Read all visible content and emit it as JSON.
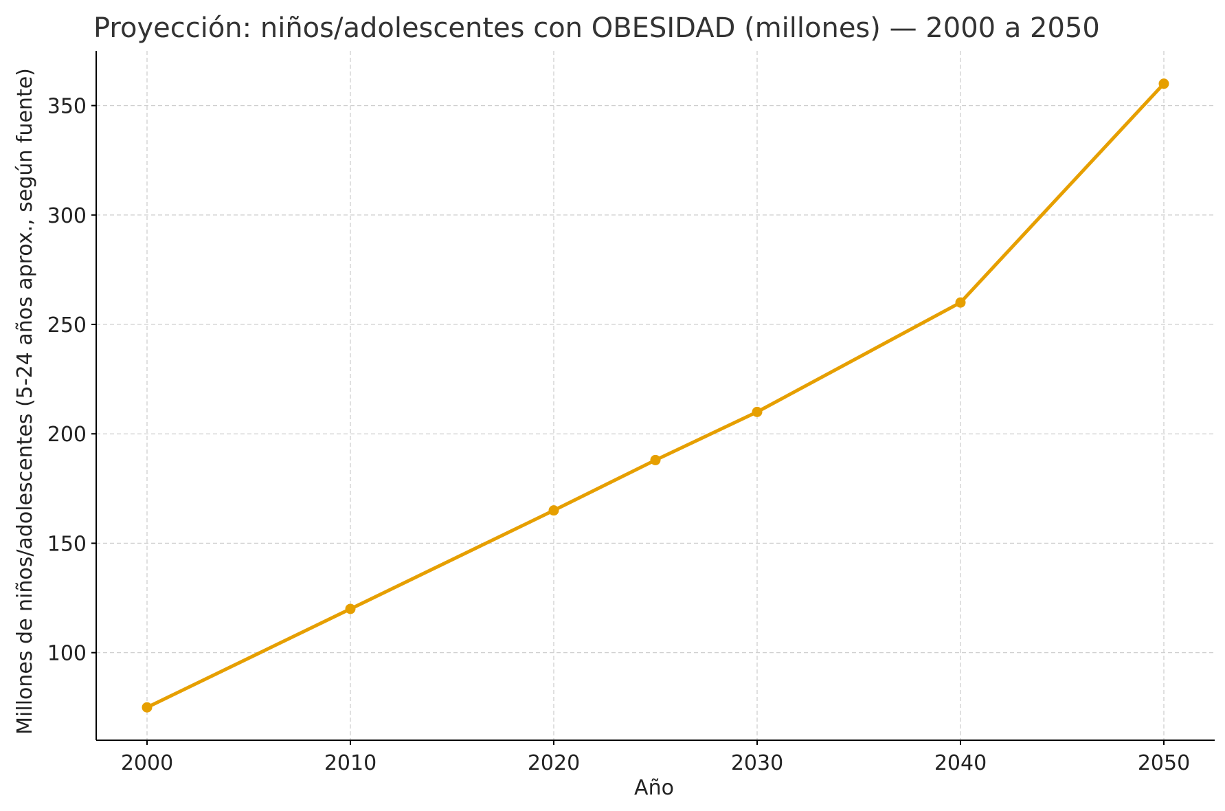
{
  "chart_data": {
    "type": "line",
    "title": "Proyección: niños/adolescentes con OBESIDAD (millones) — 2000 a 2050",
    "xlabel": "Año",
    "ylabel": "Millones de niños/adolescentes (5-24 años aprox., según fuente)",
    "x": [
      2000,
      2010,
      2020,
      2025,
      2030,
      2040,
      2050
    ],
    "series": [
      {
        "values": [
          75,
          120,
          165,
          188,
          210,
          260,
          360
        ]
      }
    ],
    "xlim": [
      1997.5,
      2052.5
    ],
    "ylim": [
      60,
      375
    ],
    "x_ticks": [
      2000,
      2010,
      2020,
      2030,
      2040,
      2050
    ],
    "y_ticks": [
      100,
      150,
      200,
      250,
      300,
      350
    ],
    "grid": true,
    "line_color": "#E69F00"
  }
}
